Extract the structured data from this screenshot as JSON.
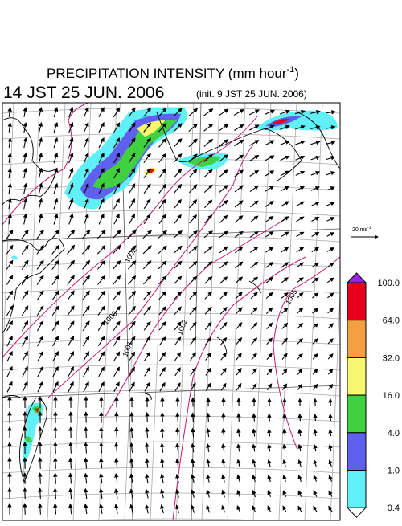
{
  "title": {
    "prefix": "PRECIPITATION INTENSITY (mm hour",
    "exponent": "-1",
    "suffix": ")"
  },
  "valid_time": "14 JST 25 JUN. 2006",
  "init_time": "(init. 9 JST 25 JUN. 2006)",
  "wind_scale": {
    "prefix": "20 ms",
    "exponent": "-1"
  },
  "colorbar": {
    "labels": [
      "100.0",
      "64.0",
      "32.0",
      "16.0",
      "4.0",
      "1.0",
      "0.4"
    ],
    "colors": [
      "#a020f0",
      "#e8001a",
      "#f5a040",
      "#f8f870",
      "#40d040",
      "#6060f0",
      "#60f0f8",
      "#ffffff"
    ]
  },
  "contour_labels": [
    "1002",
    "1000",
    "1001",
    "1002",
    "1005"
  ]
}
